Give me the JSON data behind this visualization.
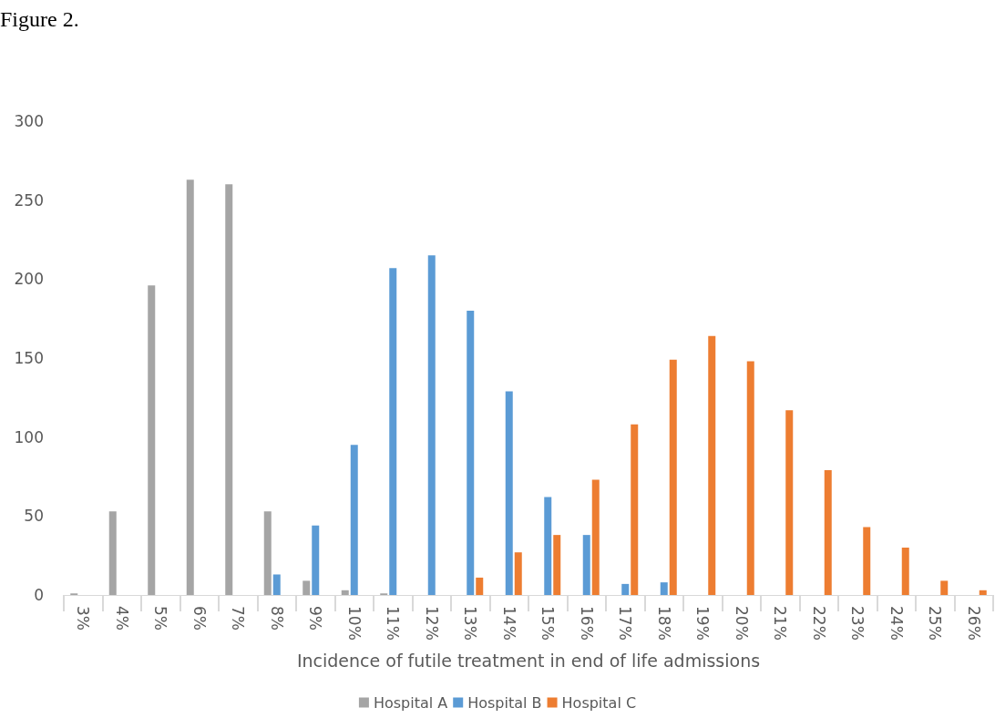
{
  "chart_data": {
    "type": "bar",
    "xlabel": "Incidence of futile treatment in end of life admissions",
    "annotations": [
      "Figure 2."
    ],
    "categories": [
      "3%",
      "4%",
      "5%",
      "6%",
      "7%",
      "8%",
      "9%",
      "10%",
      "11%",
      "12%",
      "13%",
      "14%",
      "15%",
      "16%",
      "17%",
      "18%",
      "19%",
      "20%",
      "21%",
      "22%",
      "23%",
      "24%",
      "25%",
      "26%"
    ],
    "series": [
      {
        "name": "Hospital A",
        "color": "#a5a5a5",
        "values": [
          1,
          53,
          196,
          263,
          260,
          53,
          9,
          3,
          1,
          null,
          null,
          null,
          null,
          null,
          null,
          null,
          null,
          null,
          null,
          null,
          null,
          null,
          null,
          null
        ]
      },
      {
        "name": "Hospital B",
        "color": "#5b9bd5",
        "values": [
          null,
          null,
          null,
          null,
          null,
          13,
          44,
          95,
          207,
          215,
          180,
          129,
          62,
          38,
          7,
          8,
          null,
          null,
          null,
          null,
          null,
          null,
          null,
          null
        ]
      },
      {
        "name": "Hospital C",
        "color": "#ed7d31",
        "values": [
          null,
          null,
          null,
          null,
          null,
          null,
          null,
          null,
          null,
          null,
          11,
          27,
          38,
          73,
          108,
          149,
          164,
          148,
          117,
          79,
          43,
          30,
          9,
          3
        ]
      }
    ],
    "ylim": [
      0,
      300
    ],
    "yticks": [
      0,
      50,
      100,
      150,
      200,
      250,
      300
    ],
    "grid": false,
    "legend": "bottom"
  }
}
